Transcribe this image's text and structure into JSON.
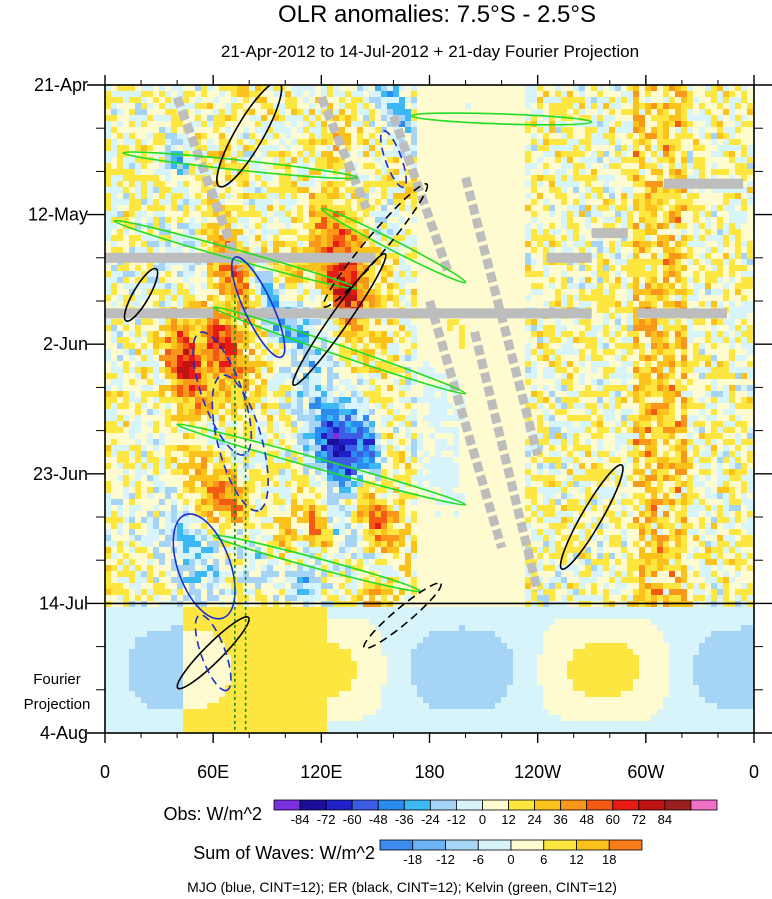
{
  "chart_data": {
    "type": "heatmap",
    "title": "OLR anomalies: 7.5°S - 2.5°S",
    "subtitle": "21-Apr-2012 to 14-Jul-2012 + 21-day Fourier Projection",
    "x_ticks": [
      "0",
      "60E",
      "120E",
      "180",
      "120W",
      "60W",
      "0"
    ],
    "x_tick_values": [
      0,
      60,
      120,
      180,
      240,
      300,
      360
    ],
    "y_ticks": [
      "21-Apr",
      "12-May",
      "2-Jun",
      "23-Jun",
      "14-Jul",
      "4-Aug"
    ],
    "y_tick_days": [
      0,
      21,
      42,
      63,
      84,
      105
    ],
    "xlim": [
      0,
      360
    ],
    "ylim_days": [
      0,
      105
    ],
    "divider_day": 84,
    "projection_label": [
      "Fourier",
      "Projection"
    ],
    "obs_colorbar": {
      "label": "Obs: W/m^2",
      "levels": [
        "-84",
        "-72",
        "-60",
        "-48",
        "-36",
        "-24",
        "-12",
        "0",
        "12",
        "24",
        "36",
        "48",
        "60",
        "72",
        "84"
      ],
      "colors": [
        "#7b2fe0",
        "#1a0e9a",
        "#2020c8",
        "#3c5ce6",
        "#2a8cf0",
        "#3cb8f4",
        "#a6d4f7",
        "#d8f4fb",
        "#fffbd0",
        "#fde640",
        "#fbc21c",
        "#f9971a",
        "#f45a14",
        "#e81a14",
        "#bf1212",
        "#9a2020",
        "#f070c8"
      ]
    },
    "waves_colorbar": {
      "label": "Sum of Waves: W/m^2",
      "levels": [
        "-18",
        "-12",
        "-6",
        "0",
        "6",
        "12",
        "18"
      ],
      "colors": [
        "#3c8cf0",
        "#6cb4f4",
        "#a8d8f8",
        "#d8f4fb",
        "#fffbd0",
        "#fde640",
        "#fbc21c",
        "#f97c1a"
      ]
    },
    "footnote": "MJO (blue, CINT=12); ER (black, CINT=12); Kelvin (green, CINT=12)",
    "series": [
      {
        "name": "MJO",
        "color": "#1a2fd0"
      },
      {
        "name": "ER",
        "color": "#000000"
      },
      {
        "name": "Kelvin",
        "color": "#22dd22"
      }
    ],
    "reference_lines_lon": [
      72,
      78
    ],
    "grid": false
  }
}
